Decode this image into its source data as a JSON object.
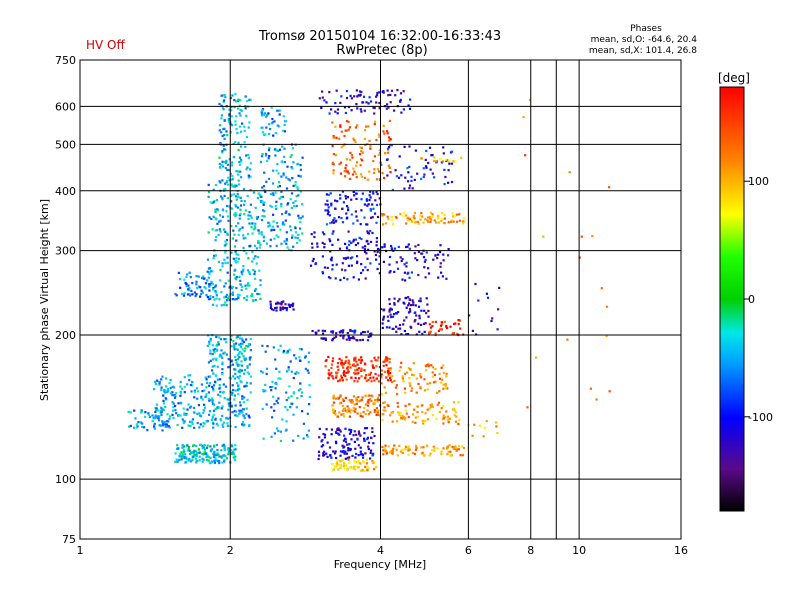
{
  "status": {
    "hv_label": "HV Off",
    "hv_color": "#d00000"
  },
  "header": {
    "title": "Tromsø 20150104 16:32:00-16:33:43",
    "subtitle": "RwPretec (8p)"
  },
  "stats": {
    "heading": "Phases",
    "line_o": "mean, sd,O: -64.6, 20.4",
    "line_x": "mean, sd,X: 101.4, 26.8"
  },
  "chart_data": {
    "type": "scatter",
    "xlabel": "Frequency [MHz]",
    "ylabel": "Stationary phase Virtual Height [km]",
    "x_scale": "log",
    "y_scale": "log",
    "xlim": [
      1,
      16
    ],
    "ylim": [
      75,
      750
    ],
    "x_ticks": [
      1,
      2,
      4,
      6,
      8,
      10,
      16
    ],
    "x_tick_labels": [
      "1",
      "2",
      "4",
      "6",
      "8",
      "10",
      "16"
    ],
    "x_grid": [
      2,
      4,
      6,
      8,
      10
    ],
    "x_minor_grid": [
      9
    ],
    "y_ticks": [
      75,
      100,
      200,
      300,
      400,
      500,
      600,
      750
    ],
    "y_tick_labels": [
      "75",
      "100",
      "200",
      "300",
      "400",
      "500",
      "600",
      "750"
    ],
    "y_grid": [
      100,
      200,
      300,
      400,
      500,
      600
    ],
    "grid": true,
    "colorbar": {
      "label": "[deg]",
      "range": [
        -180,
        180
      ],
      "ticks": [
        100,
        0,
        -100
      ],
      "tick_labels": [
        "100",
        "0",
        "-100"
      ]
    },
    "clusters": [
      {
        "x": [
          1.55,
          2.05
        ],
        "y": [
          108,
          118
        ],
        "phase": -35,
        "n": 170
      },
      {
        "x": [
          1.4,
          2.2
        ],
        "y": [
          128,
          165
        ],
        "phase": -50,
        "n": 320
      },
      {
        "x": [
          1.25,
          1.5
        ],
        "y": [
          126,
          140
        ],
        "phase": -55,
        "n": 40
      },
      {
        "x": [
          1.8,
          2.2
        ],
        "y": [
          165,
          200
        ],
        "phase": -45,
        "n": 130
      },
      {
        "x": [
          1.55,
          1.85
        ],
        "y": [
          240,
          270
        ],
        "phase": -60,
        "n": 60
      },
      {
        "x": [
          1.8,
          2.3
        ],
        "y": [
          230,
          420
        ],
        "phase": -45,
        "n": 300
      },
      {
        "x": [
          1.9,
          2.2
        ],
        "y": [
          420,
          640
        ],
        "phase": -45,
        "n": 140
      },
      {
        "x": [
          2.3,
          2.8
        ],
        "y": [
          300,
          500
        ],
        "phase": -50,
        "n": 170
      },
      {
        "x": [
          2.3,
          2.6
        ],
        "y": [
          520,
          600
        ],
        "phase": -55,
        "n": 40
      },
      {
        "x": [
          2.3,
          2.9
        ],
        "y": [
          120,
          190
        ],
        "phase": -50,
        "n": 110
      },
      {
        "x": [
          2.4,
          2.7
        ],
        "y": [
          225,
          235
        ],
        "phase": -120,
        "n": 35
      },
      {
        "x": [
          2.9,
          3.9
        ],
        "y": [
          195,
          205
        ],
        "phase": -120,
        "n": 60
      },
      {
        "x": [
          3.1,
          4.2
        ],
        "y": [
          160,
          180
        ],
        "phase": 165,
        "n": 150
      },
      {
        "x": [
          3.2,
          4.0
        ],
        "y": [
          135,
          150
        ],
        "phase": 125,
        "n": 110
      },
      {
        "x": [
          3.0,
          3.9
        ],
        "y": [
          110,
          128
        ],
        "phase": -115,
        "n": 120
      },
      {
        "x": [
          3.2,
          4.0
        ],
        "y": [
          104,
          110
        ],
        "phase": 95,
        "n": 60
      },
      {
        "x": [
          4.0,
          5.9
        ],
        "y": [
          112,
          118
        ],
        "phase": 115,
        "n": 80
      },
      {
        "x": [
          4.0,
          5.8
        ],
        "y": [
          130,
          145
        ],
        "phase": 110,
        "n": 90
      },
      {
        "x": [
          4.0,
          5.5
        ],
        "y": [
          150,
          175
        ],
        "phase": 120,
        "n": 80
      },
      {
        "x": [
          2.9,
          4.0
        ],
        "y": [
          260,
          330
        ],
        "phase": -110,
        "n": 110
      },
      {
        "x": [
          3.1,
          4.0
        ],
        "y": [
          340,
          400
        ],
        "phase": -100,
        "n": 90
      },
      {
        "x": [
          4.0,
          5.9
        ],
        "y": [
          340,
          360
        ],
        "phase": 105,
        "n": 80
      },
      {
        "x": [
          3.2,
          4.2
        ],
        "y": [
          420,
          560
        ],
        "phase": 135,
        "n": 120
      },
      {
        "x": [
          3.0,
          4.6
        ],
        "y": [
          580,
          650
        ],
        "phase": -115,
        "n": 80
      },
      {
        "x": [
          4.0,
          5.0
        ],
        "y": [
          200,
          240
        ],
        "phase": -120,
        "n": 90
      },
      {
        "x": [
          5.0,
          5.9
        ],
        "y": [
          200,
          215
        ],
        "phase": 170,
        "n": 35
      },
      {
        "x": [
          4.0,
          5.5
        ],
        "y": [
          260,
          310
        ],
        "phase": -110,
        "n": 70
      },
      {
        "x": [
          4.1,
          5.6
        ],
        "y": [
          400,
          500
        ],
        "phase": -100,
        "n": 60
      },
      {
        "x": [
          4.8,
          5.9
        ],
        "y": [
          460,
          470
        ],
        "phase": 100,
        "n": 14
      },
      {
        "x": [
          6.0,
          7.2
        ],
        "y": [
          200,
          260
        ],
        "phase": -115,
        "n": 12
      },
      {
        "x": [
          6.0,
          7.0
        ],
        "y": [
          120,
          135
        ],
        "phase": 100,
        "n": 10
      },
      {
        "x": [
          7.5,
          12.5
        ],
        "y": [
          120,
          620
        ],
        "phase": 125,
        "n": 18
      }
    ]
  }
}
